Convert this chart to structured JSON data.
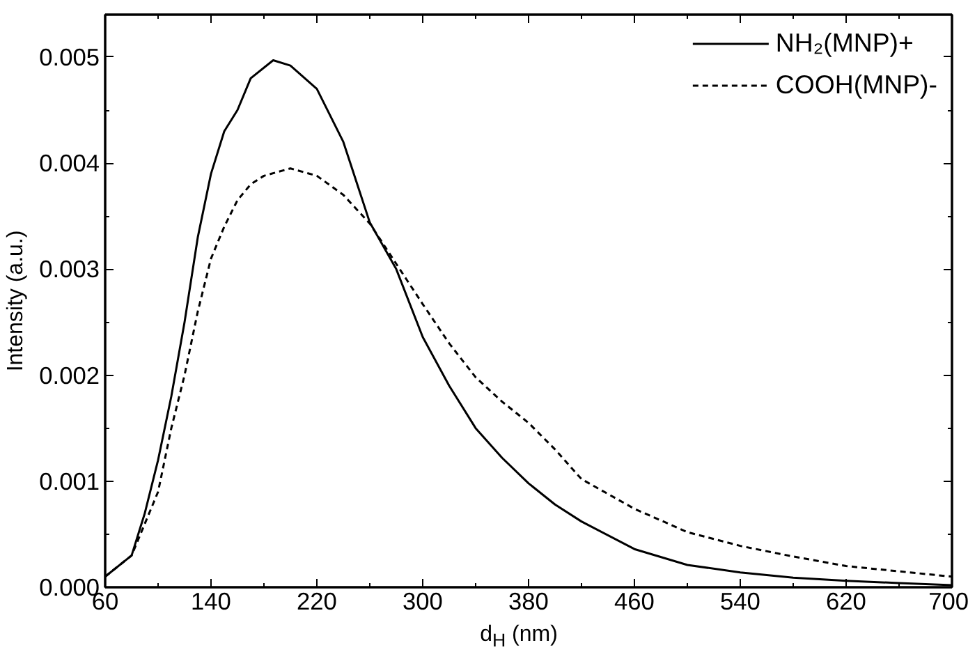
{
  "chart_data": {
    "type": "line",
    "xlabel": "d$_{H}$ (nm)",
    "ylabel": "Intensity (a.u.)",
    "xlim": [
      60,
      700
    ],
    "ylim": [
      0,
      0.0054
    ],
    "xticks": [
      60,
      140,
      220,
      300,
      380,
      460,
      540,
      620,
      700
    ],
    "yticks": [
      {
        "value": 0,
        "label": "0.000"
      },
      {
        "value": 0.001,
        "label": "0.001"
      },
      {
        "value": 0.002,
        "label": "0.002"
      },
      {
        "value": 0.003,
        "label": "0.003"
      },
      {
        "value": 0.004,
        "label": "0.004"
      },
      {
        "value": 0.005,
        "label": "0.005"
      }
    ],
    "grid": false,
    "legend": "top right",
    "marker": "none",
    "series": [
      {
        "name": "NH₂(MNP)+",
        "color": "#000000",
        "line_style": "solid",
        "x": [
          60,
          80,
          90,
          100,
          110,
          120,
          130,
          140,
          150,
          160,
          170,
          187,
          200,
          220,
          240,
          260,
          280,
          300,
          320,
          340,
          360,
          380,
          400,
          420,
          460,
          500,
          540,
          580,
          620,
          660,
          700
        ],
        "values": [
          0.0001,
          0.0003,
          0.0007,
          0.0012,
          0.0018,
          0.0025,
          0.0033,
          0.0039,
          0.0043,
          0.0045,
          0.0048,
          0.00497,
          0.00492,
          0.0047,
          0.0042,
          0.00344,
          0.003,
          0.00236,
          0.0019,
          0.0015,
          0.00122,
          0.00098,
          0.00078,
          0.00062,
          0.00036,
          0.00021,
          0.00014,
          9e-05,
          6e-05,
          4e-05,
          2e-05
        ]
      },
      {
        "name": "COOH(MNP)-",
        "color": "#000000",
        "line_style": "dashed",
        "x": [
          60,
          80,
          90,
          100,
          110,
          120,
          130,
          140,
          150,
          160,
          170,
          180,
          200,
          220,
          240,
          260,
          280,
          300,
          320,
          340,
          360,
          380,
          400,
          420,
          460,
          500,
          540,
          580,
          620,
          660,
          700
        ],
        "values": [
          0.0001,
          0.0003,
          0.0006,
          0.0009,
          0.0015,
          0.002,
          0.0026,
          0.0031,
          0.0034,
          0.00365,
          0.0038,
          0.00388,
          0.00395,
          0.00388,
          0.0037,
          0.00343,
          0.00305,
          0.00267,
          0.0023,
          0.00198,
          0.00175,
          0.00155,
          0.0013,
          0.00102,
          0.00074,
          0.00052,
          0.00039,
          0.00029,
          0.0002,
          0.00015,
          0.0001
        ]
      }
    ]
  }
}
